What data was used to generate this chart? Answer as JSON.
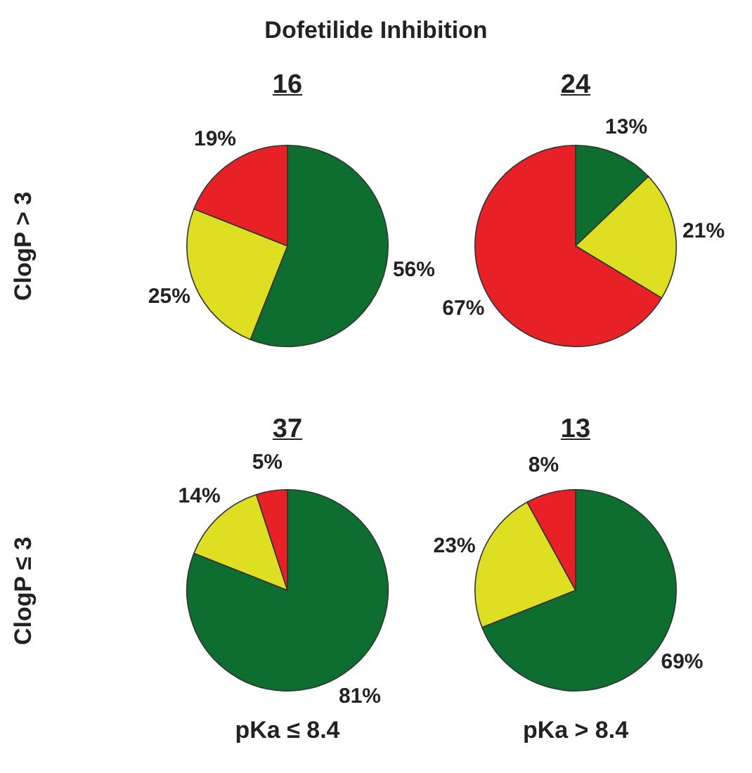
{
  "chart_data": [
    {
      "type": "other",
      "title": "Dofetilide Inhibition"
    },
    {
      "type": "pie",
      "title": "16",
      "ylabel": "ClogP > 3",
      "categories": [
        null,
        null,
        null
      ],
      "values": [
        56,
        25,
        19
      ],
      "colors": [
        "#0e6e30",
        "#dede22",
        "#e82127"
      ],
      "value_labels": [
        "56%",
        "25%",
        "19%"
      ]
    },
    {
      "type": "pie",
      "title": "24",
      "categories": [
        null,
        null,
        null
      ],
      "values": [
        13,
        21,
        67
      ],
      "colors": [
        "#0e6e30",
        "#dede22",
        "#e82127"
      ],
      "value_labels": [
        "13%",
        "21%",
        "67%"
      ]
    },
    {
      "type": "pie",
      "title": "37",
      "ylabel": "ClogP ≤ 3",
      "xlabel": "pKa ≤ 8.4",
      "categories": [
        null,
        null,
        null
      ],
      "values": [
        81,
        14,
        5
      ],
      "colors": [
        "#0e6e30",
        "#dede22",
        "#e82127"
      ],
      "value_labels": [
        "81%",
        "14%",
        "5%"
      ]
    },
    {
      "type": "pie",
      "title": "13",
      "xlabel": "pKa > 8.4",
      "categories": [
        null,
        null,
        null
      ],
      "values": [
        69,
        23,
        8
      ],
      "colors": [
        "#0e6e30",
        "#dede22",
        "#e82127"
      ],
      "value_labels": [
        "69%",
        "23%",
        "8%"
      ]
    }
  ]
}
